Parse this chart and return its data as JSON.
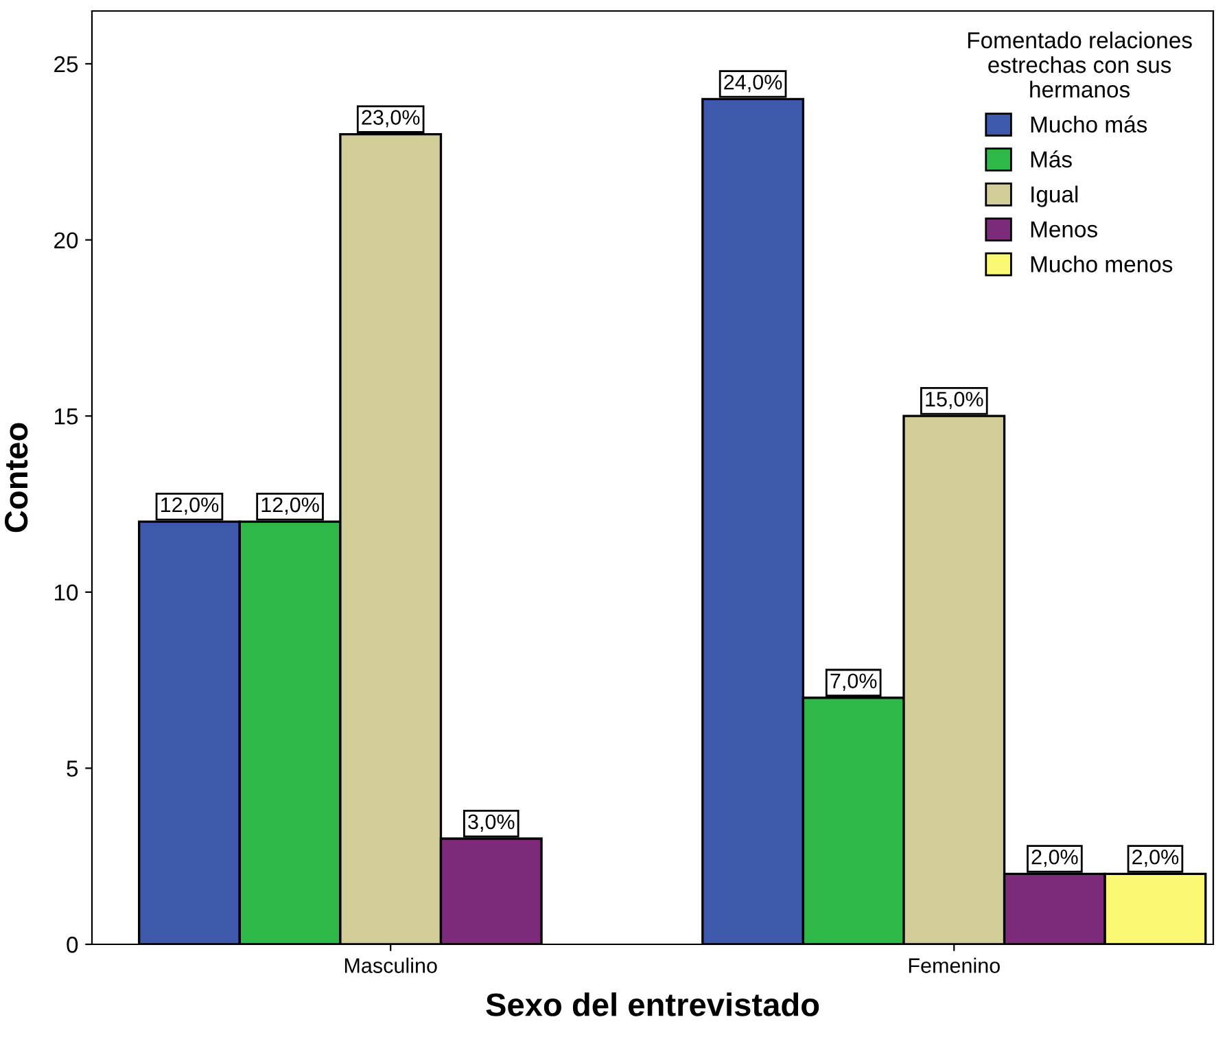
{
  "chart_data": {
    "type": "bar",
    "xlabel": "Sexo del entrevistado",
    "ylabel": "Conteo",
    "legend_title": "Fomentado relaciones\nestrechas con sus\nhermanos",
    "legend": "top right",
    "categories": [
      "Masculino",
      "Femenino"
    ],
    "series": [
      {
        "name": "Mucho más",
        "color": "#3e58ac",
        "values": [
          12,
          24
        ],
        "value_labels": [
          "12,0%",
          "24,0%"
        ]
      },
      {
        "name": "Más",
        "color": "#2eb848",
        "values": [
          12,
          7
        ],
        "value_labels": [
          "12,0%",
          "7,0%"
        ]
      },
      {
        "name": "Igual",
        "color": "#d2cc96",
        "values": [
          23,
          15
        ],
        "value_labels": [
          "23,0%",
          "15,0%"
        ]
      },
      {
        "name": "Menos",
        "color": "#7d2a7a",
        "values": [
          3,
          2
        ],
        "value_labels": [
          "3,0%",
          "2,0%"
        ]
      },
      {
        "name": "Mucho menos",
        "color": "#fbf873",
        "values": [
          null,
          2
        ],
        "value_labels": [
          null,
          "2,0%"
        ]
      }
    ],
    "ylim": [
      0,
      26.5
    ],
    "yticks": [
      0,
      5,
      10,
      15,
      20,
      25
    ],
    "grid": false
  }
}
